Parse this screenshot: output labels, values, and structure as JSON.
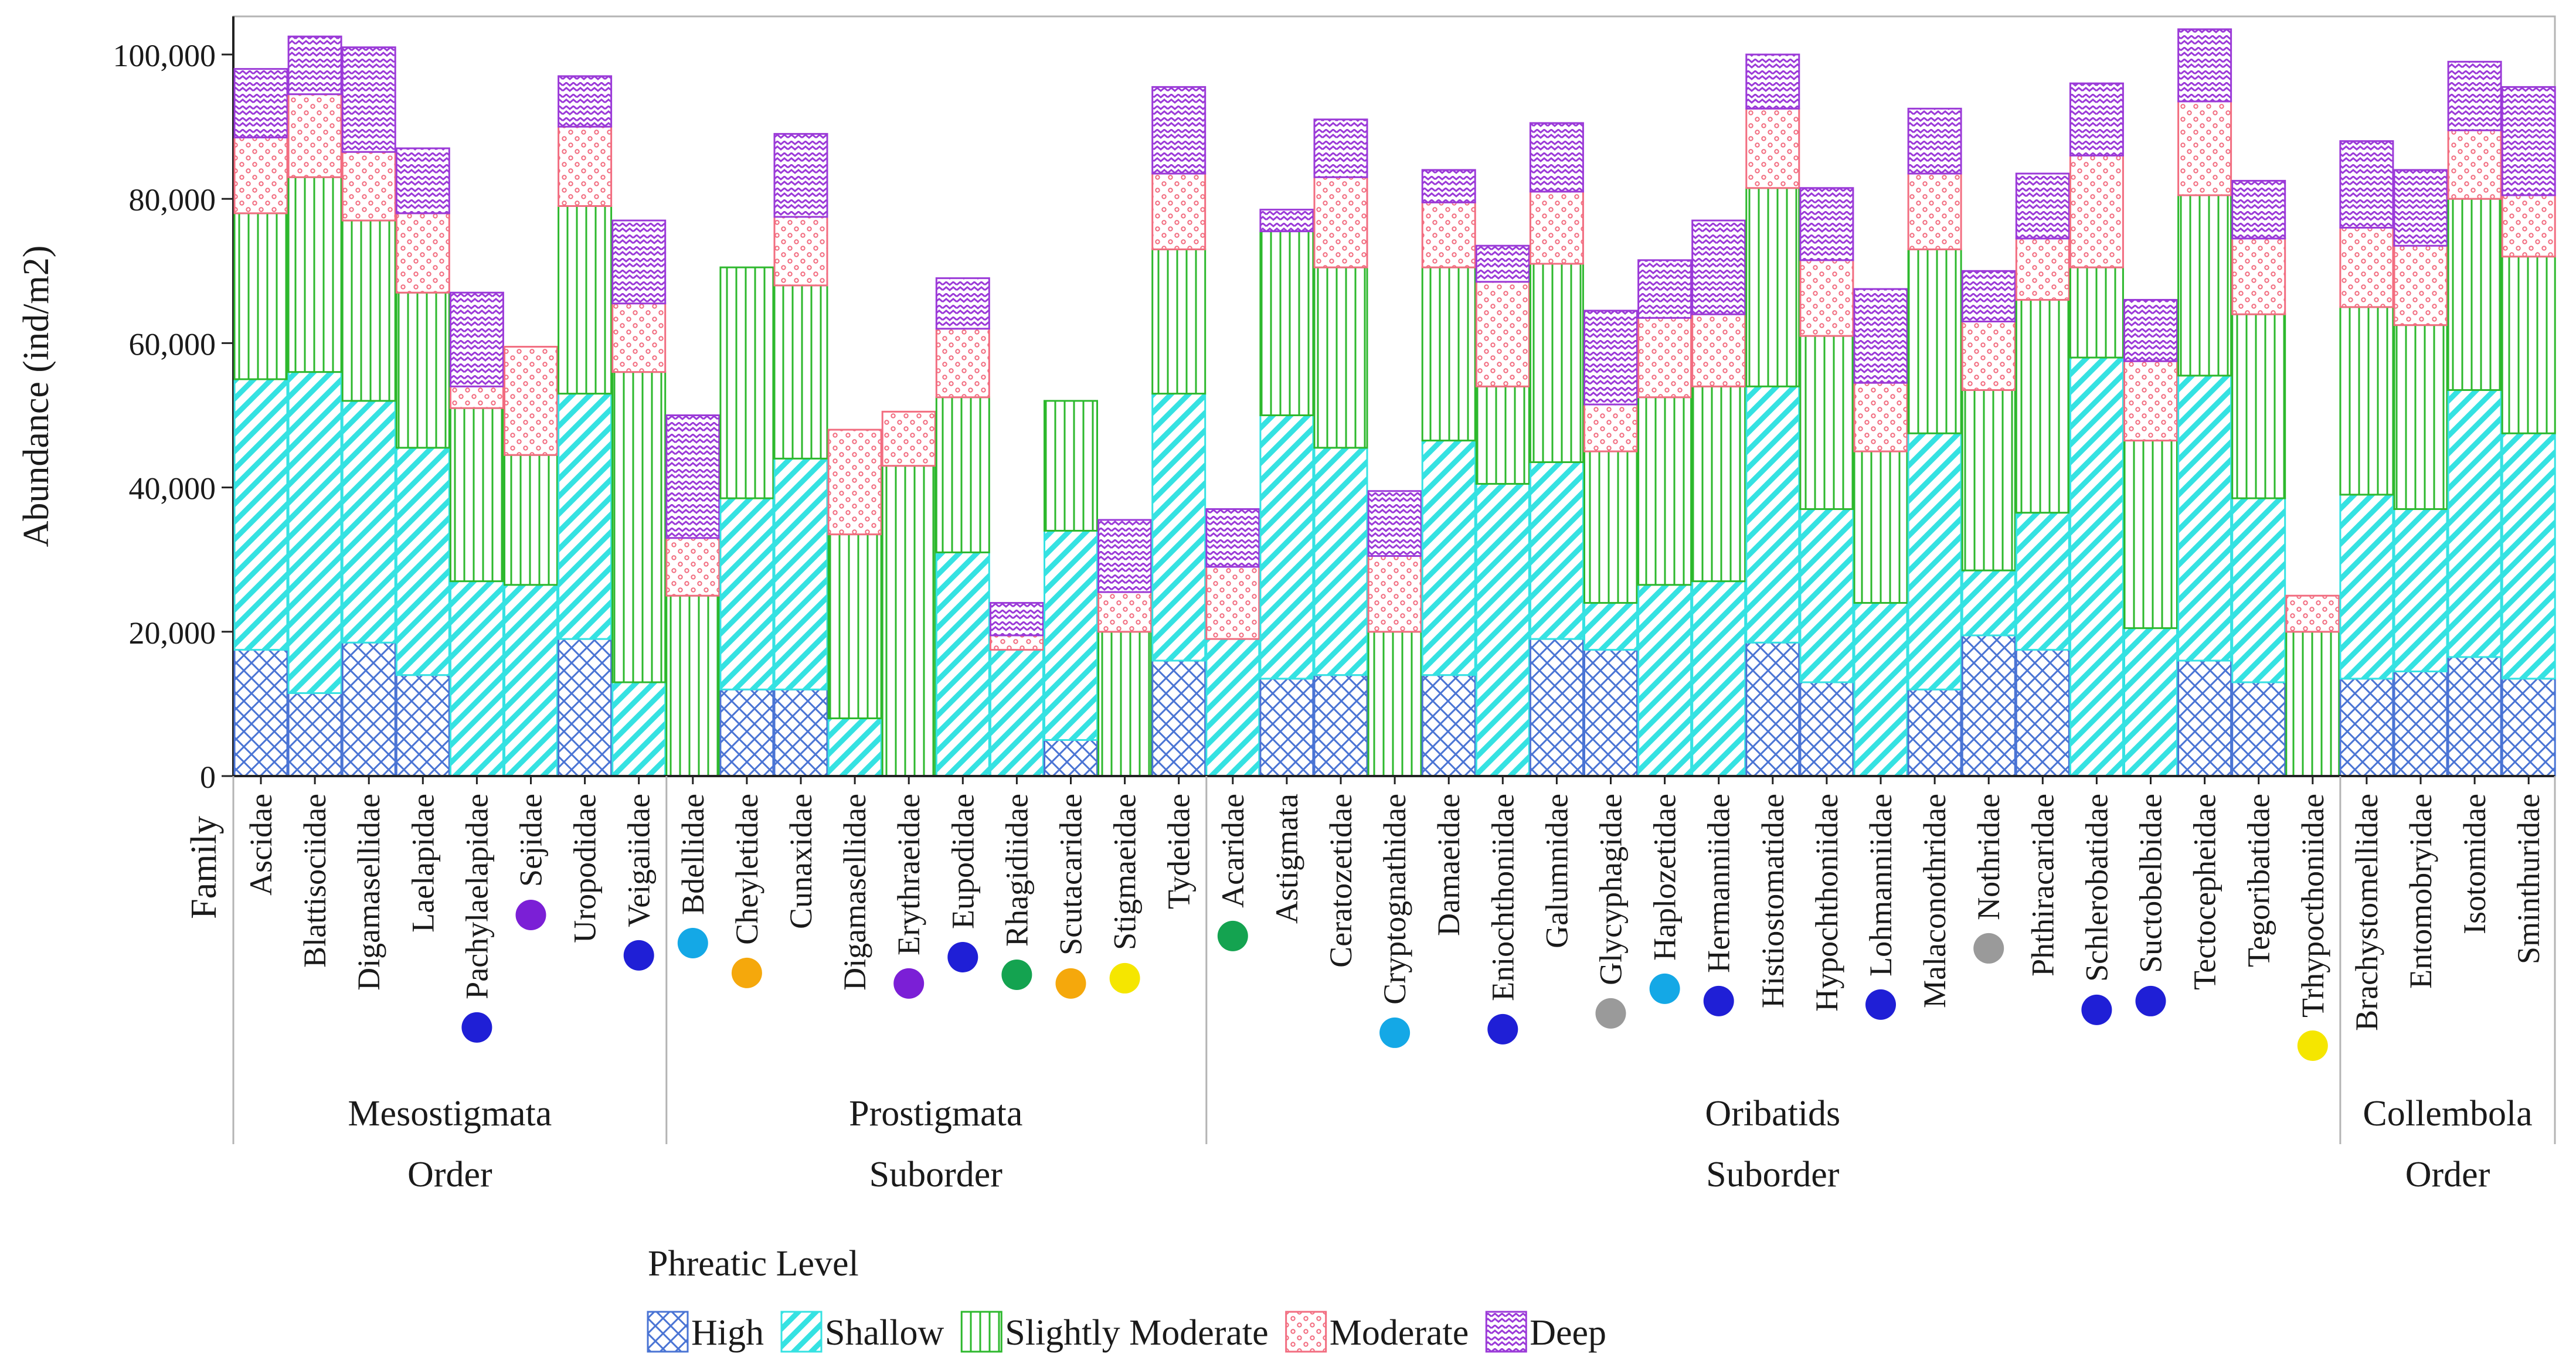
{
  "chart_data": {
    "type": "bar",
    "stacked": true,
    "ylabel": "Abundance (ind/m2)",
    "xlabel": "Family",
    "ylim": [
      0,
      100000
    ],
    "yticks": [
      0,
      20000,
      40000,
      60000,
      80000,
      100000
    ],
    "ytick_labels": [
      "0",
      "20,000",
      "40,000",
      "60,000",
      "80,000",
      "100,000"
    ],
    "legend_title": "Phreatic Level",
    "series": [
      {
        "key": "high",
        "name": "High",
        "color": "#4a74d4",
        "values": [
          17500,
          11500,
          18500,
          14000,
          0,
          0,
          19000,
          0,
          0,
          12000,
          12000,
          0,
          0,
          0,
          0,
          5000,
          0,
          16000,
          0,
          13500,
          14000,
          0,
          14000,
          0,
          19000,
          17500,
          0,
          0,
          18500,
          13000,
          0,
          12000,
          19500,
          17500,
          0,
          0,
          16000,
          13000,
          0,
          13500,
          14500,
          16500,
          13500
        ]
      },
      {
        "key": "shallow",
        "name": "Shallow",
        "color": "#35e2e2",
        "values": [
          37500,
          44500,
          33500,
          31500,
          27000,
          26500,
          34000,
          13000,
          0,
          26500,
          32000,
          8000,
          0,
          31000,
          17500,
          29000,
          0,
          37000,
          19000,
          36500,
          31500,
          0,
          32500,
          40500,
          24500,
          6500,
          26500,
          27000,
          35500,
          24000,
          24000,
          35500,
          9000,
          19000,
          58000,
          20500,
          39500,
          25500,
          0,
          25500,
          22500,
          37000,
          34000
        ]
      },
      {
        "key": "slightly_moderate",
        "name": "Slightly Moderate",
        "color": "#2db82d",
        "values": [
          23000,
          27000,
          25000,
          21500,
          24000,
          18000,
          26000,
          43000,
          25000,
          32000,
          24000,
          25500,
          43000,
          21500,
          0,
          18000,
          20000,
          20000,
          0,
          25500,
          25000,
          20000,
          24000,
          13500,
          27500,
          21000,
          26000,
          27000,
          27500,
          24000,
          21000,
          25500,
          25000,
          29500,
          12500,
          26000,
          25000,
          25500,
          20000,
          26000,
          25500,
          26500,
          24500
        ]
      },
      {
        "key": "moderate",
        "name": "Moderate",
        "color": "#f26d80",
        "values": [
          10500,
          11500,
          9500,
          11000,
          3000,
          15000,
          11000,
          9500,
          8000,
          0,
          9500,
          14500,
          7500,
          9500,
          2000,
          0,
          5500,
          10500,
          10000,
          0,
          12500,
          10500,
          9000,
          14500,
          10000,
          6500,
          11000,
          10000,
          11000,
          10500,
          9500,
          10500,
          9500,
          8500,
          15500,
          11000,
          13000,
          10500,
          5000,
          11000,
          11000,
          9500,
          8500
        ]
      },
      {
        "key": "deep",
        "name": "Deep",
        "color": "#9b3ad8",
        "values": [
          9500,
          8000,
          14500,
          9000,
          13000,
          0,
          7000,
          11500,
          17000,
          0,
          11500,
          0,
          0,
          7000,
          4500,
          0,
          10000,
          12000,
          8000,
          3000,
          8000,
          9000,
          4500,
          5000,
          9500,
          13000,
          8000,
          13000,
          7500,
          10000,
          13000,
          9000,
          7000,
          9000,
          10000,
          8500,
          10000,
          8000,
          0,
          12000,
          10500,
          9500,
          15000
        ]
      }
    ],
    "families": [
      {
        "name": "Ascidae"
      },
      {
        "name": "Blattisociidae"
      },
      {
        "name": "Digamasellidae"
      },
      {
        "name": "Laelapidae"
      },
      {
        "name": "Pachylaelapidae",
        "dot": "#1f1fd6"
      },
      {
        "name": "Sejidae",
        "dot": "#7b1fd6"
      },
      {
        "name": "Uropodidae"
      },
      {
        "name": "Veigaiidae",
        "dot": "#1f1fd6"
      },
      {
        "name": "Bdellidae",
        "dot": "#14a8e6"
      },
      {
        "name": "Cheyletidae",
        "dot": "#f5a80c"
      },
      {
        "name": "Cunaxidae"
      },
      {
        "name": "Digamasellidae"
      },
      {
        "name": "Erythraeidae",
        "dot": "#7b1fd6"
      },
      {
        "name": "Eupodidae",
        "dot": "#1f1fd6"
      },
      {
        "name": "Rhagidiidae",
        "dot": "#14a350"
      },
      {
        "name": "Scutacaridae",
        "dot": "#f5a80c"
      },
      {
        "name": "Stigmaeidae",
        "dot": "#f5e600"
      },
      {
        "name": "Tydeidae"
      },
      {
        "name": "Acaridae",
        "dot": "#14a350"
      },
      {
        "name": "Astigmata"
      },
      {
        "name": "Ceratozetidae"
      },
      {
        "name": "Cryptognathidae",
        "dot": "#14a8e6"
      },
      {
        "name": "Damaeidae"
      },
      {
        "name": "Eniochthoniidae",
        "dot": "#1f1fd6"
      },
      {
        "name": "Galumnidae"
      },
      {
        "name": "Glycyphagidae",
        "dot": "#9a9a9a"
      },
      {
        "name": "Haplozetidae",
        "dot": "#14a8e6"
      },
      {
        "name": "Hermanniidae",
        "dot": "#1f1fd6"
      },
      {
        "name": "Histiostomatidae"
      },
      {
        "name": "Hypochthoniidae"
      },
      {
        "name": "Lohmanniidae",
        "dot": "#1f1fd6"
      },
      {
        "name": "Malaconothridae"
      },
      {
        "name": "Nothridae",
        "dot": "#9a9a9a"
      },
      {
        "name": "Phthiracaridae"
      },
      {
        "name": "Schlerobatidae",
        "dot": "#1f1fd6"
      },
      {
        "name": "Suctobelbidae",
        "dot": "#1f1fd6"
      },
      {
        "name": "Tectocepheidae"
      },
      {
        "name": "Tegoribatidae"
      },
      {
        "name": "Trhypocthoniidae",
        "dot": "#f5e600"
      },
      {
        "name": "Brachystomellidae"
      },
      {
        "name": "Entomobryidae"
      },
      {
        "name": "Isotomidae"
      },
      {
        "name": "Sminthuridae"
      }
    ],
    "groups": [
      {
        "name": "Mesostigmata",
        "rank": "Order",
        "start": 0,
        "end": 7
      },
      {
        "name": "Prostigmata",
        "rank": "Suborder",
        "start": 8,
        "end": 17
      },
      {
        "name": "Oribatids",
        "rank": "Suborder",
        "start": 18,
        "end": 38
      },
      {
        "name": "Collembola",
        "rank": "Order",
        "start": 39,
        "end": 42
      }
    ]
  }
}
